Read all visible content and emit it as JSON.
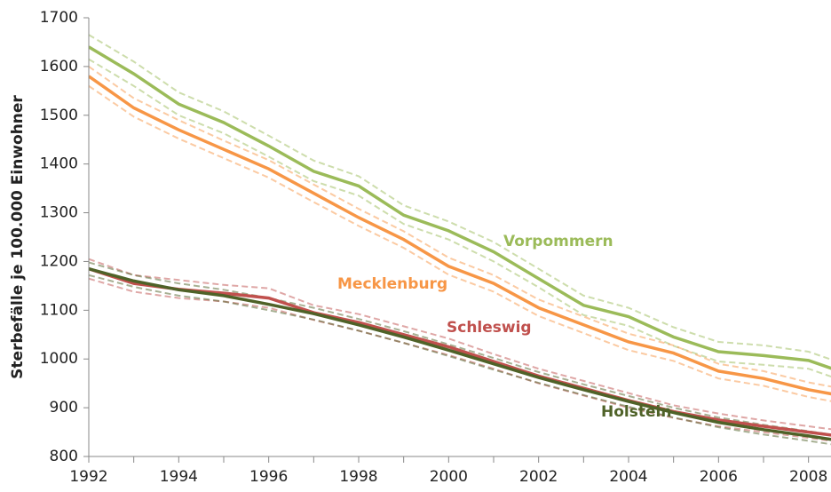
{
  "chart_data": {
    "type": "line",
    "y_label": "Sterbefälle je 100.000 Einwohner",
    "x": [
      1992,
      1993,
      1994,
      1995,
      1996,
      1997,
      1998,
      1999,
      2000,
      2001,
      2002,
      2003,
      2004,
      2005,
      2006,
      2007,
      2008,
      2009
    ],
    "xlim": [
      1992,
      2008.5
    ],
    "xticks": [
      1992,
      1994,
      1996,
      1998,
      2000,
      2002,
      2004,
      2006,
      2008
    ],
    "ylim": [
      800,
      1700
    ],
    "yticks": [
      800,
      900,
      1000,
      1100,
      1200,
      1300,
      1400,
      1500,
      1600,
      1700
    ],
    "series": [
      {
        "name": "Vorpommern",
        "color": "#9bbb59",
        "values": [
          1640,
          1585,
          1523,
          1485,
          1437,
          1385,
          1355,
          1295,
          1263,
          1220,
          1165,
          1110,
          1087,
          1045,
          1015,
          1007,
          997,
          965
        ],
        "upper": [
          1665,
          1610,
          1547,
          1508,
          1458,
          1407,
          1375,
          1315,
          1282,
          1240,
          1185,
          1130,
          1105,
          1065,
          1035,
          1028,
          1015,
          983
        ],
        "lower": [
          1615,
          1560,
          1500,
          1463,
          1415,
          1365,
          1335,
          1277,
          1245,
          1200,
          1147,
          1090,
          1068,
          1027,
          995,
          988,
          980,
          948
        ]
      },
      {
        "name": "Mecklenburg",
        "color": "#f79646",
        "values": [
          1580,
          1515,
          1470,
          1430,
          1390,
          1340,
          1290,
          1245,
          1190,
          1155,
          1105,
          1070,
          1035,
          1012,
          975,
          960,
          937,
          920
        ],
        "upper": [
          1600,
          1535,
          1490,
          1448,
          1408,
          1358,
          1308,
          1262,
          1208,
          1172,
          1122,
          1087,
          1052,
          1028,
          990,
          975,
          952,
          935
        ],
        "lower": [
          1560,
          1497,
          1452,
          1412,
          1372,
          1322,
          1273,
          1228,
          1173,
          1138,
          1088,
          1053,
          1018,
          996,
          960,
          945,
          922,
          905
        ]
      },
      {
        "name": "Schleswig",
        "color": "#c0504d",
        "values": [
          1185,
          1155,
          1143,
          1135,
          1125,
          1095,
          1075,
          1050,
          1025,
          995,
          965,
          940,
          915,
          892,
          875,
          862,
          850,
          838
        ],
        "upper": [
          1205,
          1172,
          1162,
          1152,
          1145,
          1110,
          1092,
          1067,
          1042,
          1010,
          980,
          955,
          930,
          905,
          888,
          874,
          862,
          850
        ],
        "lower": [
          1165,
          1138,
          1125,
          1118,
          1105,
          1080,
          1058,
          1033,
          1008,
          980,
          950,
          925,
          900,
          879,
          862,
          850,
          838,
          826
        ]
      },
      {
        "name": "Holstein",
        "color": "#4f6228",
        "values": [
          1185,
          1160,
          1142,
          1130,
          1112,
          1093,
          1070,
          1045,
          1018,
          990,
          962,
          937,
          913,
          890,
          870,
          855,
          842,
          828
        ],
        "upper": [
          1198,
          1172,
          1155,
          1142,
          1125,
          1105,
          1082,
          1057,
          1030,
          1002,
          973,
          948,
          924,
          900,
          880,
          865,
          852,
          838
        ],
        "lower": [
          1172,
          1148,
          1130,
          1118,
          1100,
          1081,
          1058,
          1033,
          1006,
          978,
          951,
          926,
          902,
          880,
          860,
          845,
          832,
          818
        ]
      }
    ]
  }
}
